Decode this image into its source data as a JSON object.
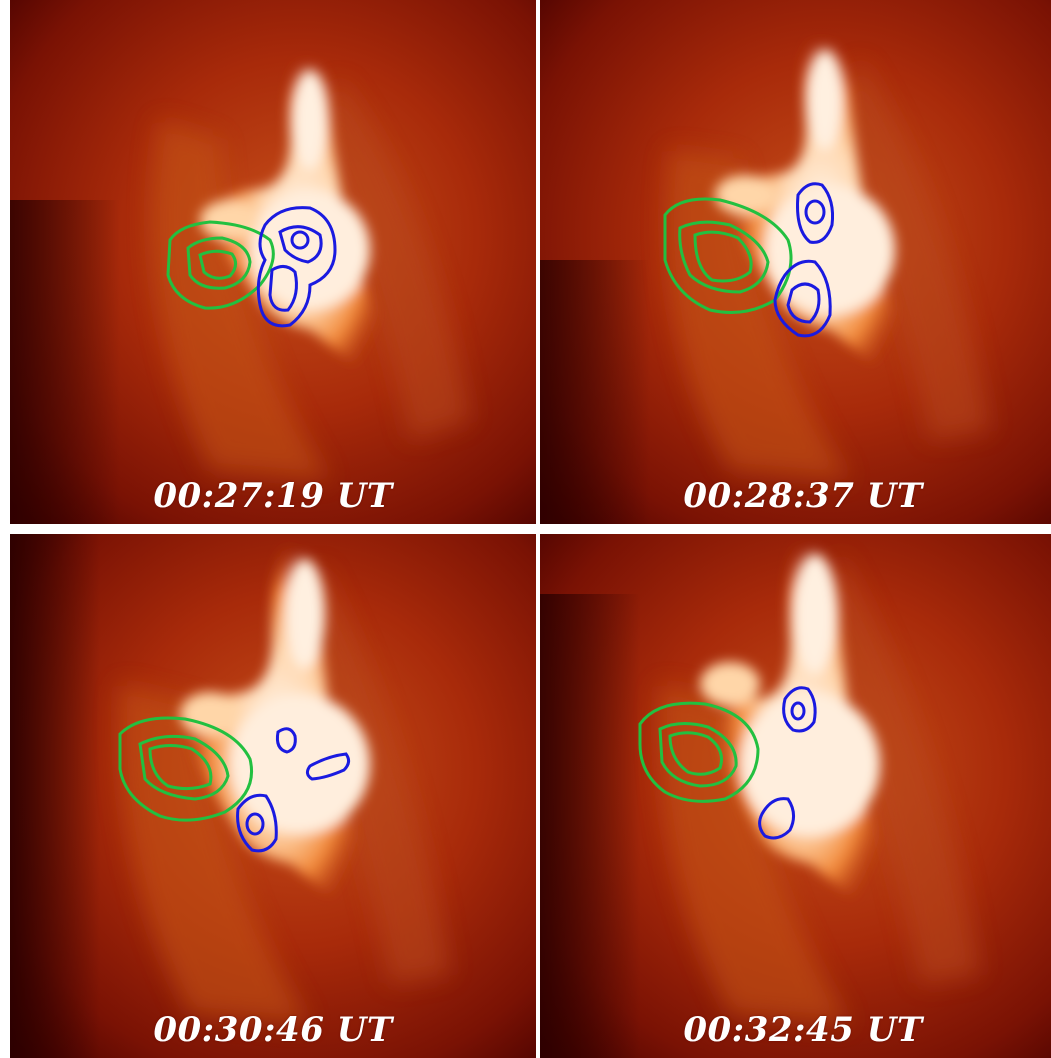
{
  "panels": [
    {
      "id": "tl",
      "timestamp": "00:27:19 UT"
    },
    {
      "id": "tr",
      "timestamp": "00:28:37 UT"
    },
    {
      "id": "bl",
      "timestamp": "00:30:46 UT"
    },
    {
      "id": "br",
      "timestamp": "00:32:45 UT"
    }
  ],
  "colors": {
    "background_dark": "#3a0000",
    "background_mid": "#a82c0a",
    "bright": "#ffe6c8",
    "contour_green": "#22c040",
    "contour_blue": "#1a1ae0",
    "divider": "#ffffff"
  }
}
